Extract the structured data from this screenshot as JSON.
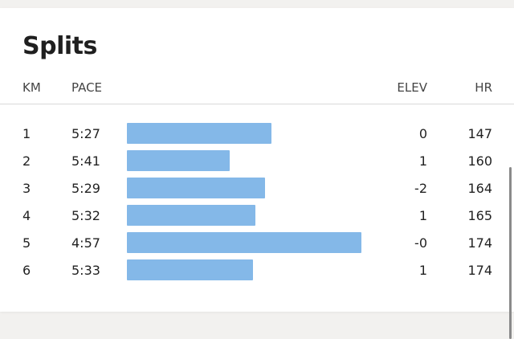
{
  "splits": {
    "title": "Splits",
    "columns": {
      "km": "KM",
      "pace": "PACE",
      "elev": "ELEV",
      "hr": "HR"
    },
    "max_pace_seconds": 341,
    "min_pace_seconds": 297,
    "rows": [
      {
        "km": "1",
        "pace": "5:27",
        "elev": "0",
        "hr": "147",
        "bar_fraction": 0.618
      },
      {
        "km": "2",
        "pace": "5:41",
        "elev": "1",
        "hr": "160",
        "bar_fraction": 0.438
      },
      {
        "km": "3",
        "pace": "5:29",
        "elev": "-2",
        "hr": "164",
        "bar_fraction": 0.589
      },
      {
        "km": "4",
        "pace": "5:32",
        "elev": "1",
        "hr": "165",
        "bar_fraction": 0.548
      },
      {
        "km": "5",
        "pace": "4:57",
        "elev": "-0",
        "hr": "174",
        "bar_fraction": 1.0
      },
      {
        "km": "6",
        "pace": "5:33",
        "elev": "1",
        "hr": "174",
        "bar_fraction": 0.537
      }
    ]
  },
  "colors": {
    "bar": "#84b8e8",
    "card": "#ffffff",
    "background": "#f2f1ef"
  }
}
